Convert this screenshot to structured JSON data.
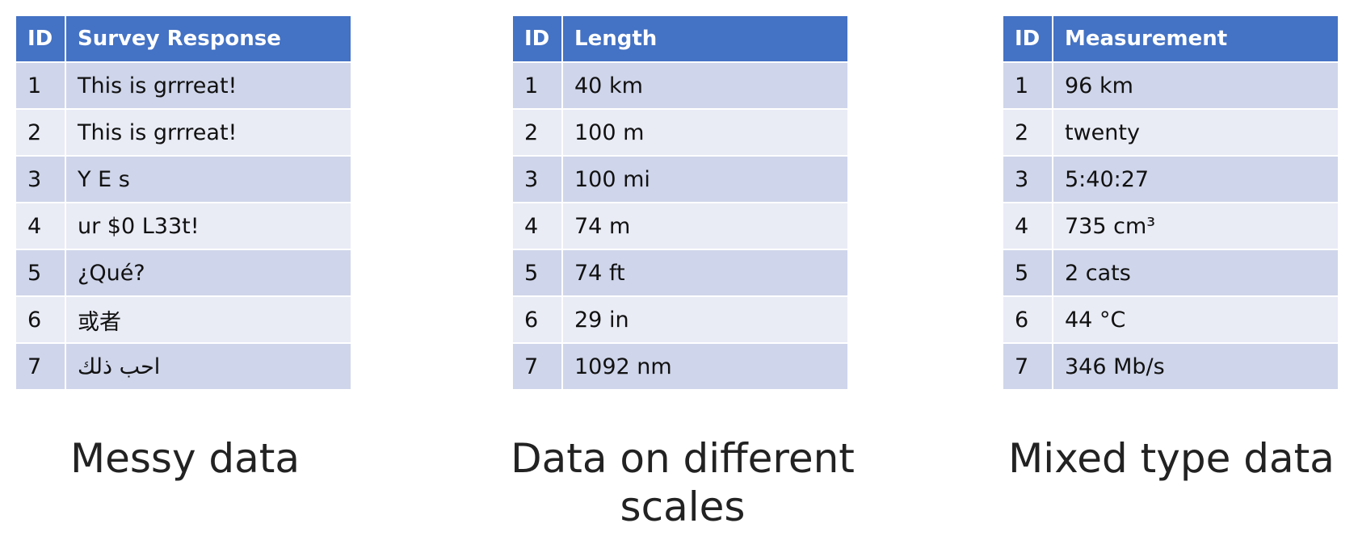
{
  "tables": [
    {
      "headers": [
        "ID",
        "Survey Response"
      ],
      "rows": [
        [
          "1",
          "This is grrreat!"
        ],
        [
          "2",
          "This is grrreat!"
        ],
        [
          "3",
          "Y   E   s"
        ],
        [
          "4",
          "ur $0 L33t!"
        ],
        [
          "5",
          "¿Qué?"
        ],
        [
          "6",
          "或者"
        ],
        [
          "7",
          "احب ذلك"
        ]
      ],
      "caption": "Messy data"
    },
    {
      "headers": [
        "ID",
        "Length"
      ],
      "rows": [
        [
          "1",
          "40 km"
        ],
        [
          "2",
          "100 m"
        ],
        [
          "3",
          "100 mi"
        ],
        [
          "4",
          "74 m"
        ],
        [
          "5",
          "74 ft"
        ],
        [
          "6",
          "29 in"
        ],
        [
          "7",
          "1092 nm"
        ]
      ],
      "caption": "Data on different scales"
    },
    {
      "headers": [
        "ID",
        "Measurement"
      ],
      "rows": [
        [
          "1",
          "96 km"
        ],
        [
          "2",
          "twenty"
        ],
        [
          "3",
          "5:40:27"
        ],
        [
          "4",
          "735 cm³"
        ],
        [
          "5",
          "2 cats"
        ],
        [
          "6",
          "44 °C"
        ],
        [
          "7",
          "346 Mb/s"
        ]
      ],
      "caption": "Mixed type data"
    }
  ],
  "colors": {
    "header": "#4472c4",
    "row_odd": "#cfd5ea",
    "row_even": "#e9ebf5"
  }
}
